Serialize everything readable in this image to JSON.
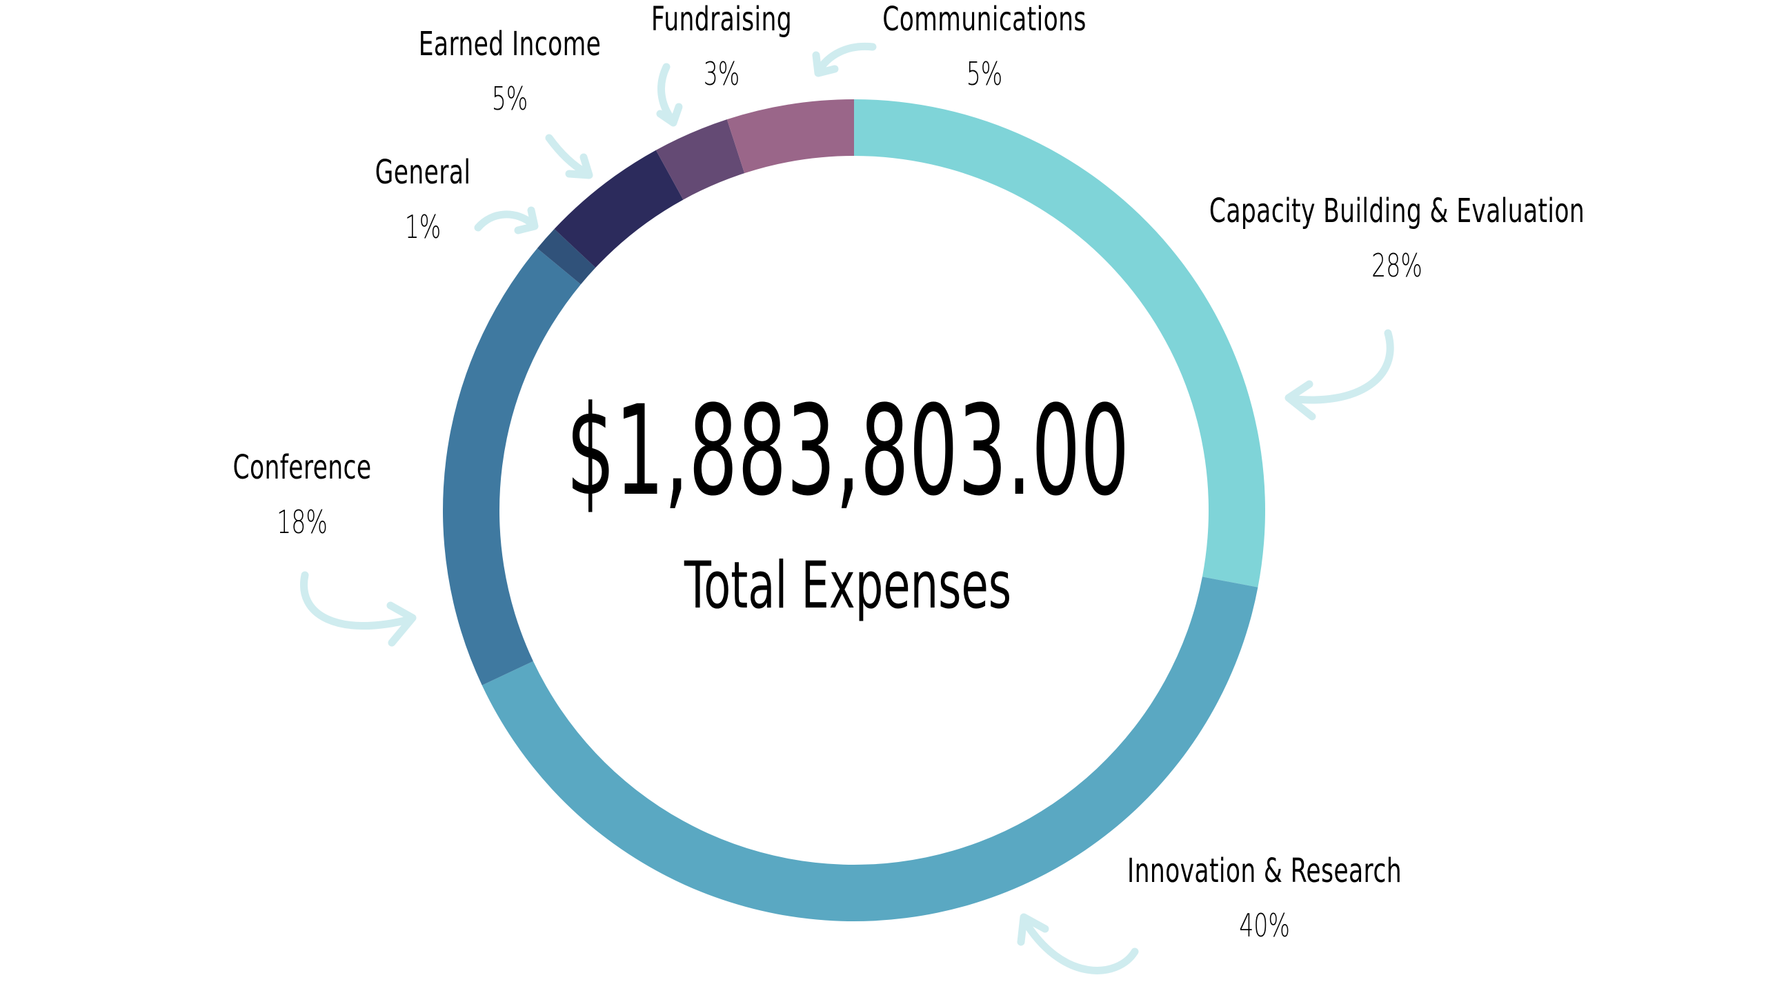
{
  "chart_data": {
    "type": "pie",
    "variant": "donut",
    "center_value": "$1,883,803.00",
    "center_caption": "Total Expenses",
    "slices": [
      {
        "name": "Capacity Building & Evaluation",
        "percent_label": "28%",
        "value": 28,
        "color": "#7fd4d8"
      },
      {
        "name": "Innovation & Research",
        "percent_label": "40%",
        "value": 40,
        "color": "#5aa8c2"
      },
      {
        "name": "Conference",
        "percent_label": "18%",
        "value": 18,
        "color": "#3f79a0"
      },
      {
        "name": "General",
        "percent_label": "1%",
        "value": 1,
        "color": "#30527a"
      },
      {
        "name": "Earned Income",
        "percent_label": "5%",
        "value": 5,
        "color": "#2c2b5c"
      },
      {
        "name": "Fundraising",
        "percent_label": "3%",
        "value": 3,
        "color": "#644a74"
      },
      {
        "name": "Communications",
        "percent_label": "5%",
        "value": 5,
        "color": "#9a6689"
      }
    ],
    "arrow_color": "#cfecef"
  }
}
